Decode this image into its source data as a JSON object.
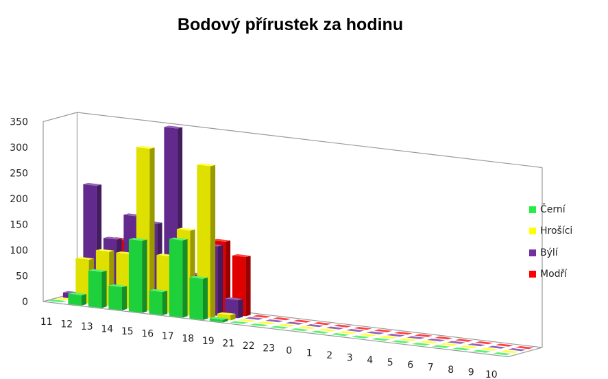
{
  "chart_data": {
    "type": "bar",
    "subtype": "3d-column",
    "title": "Bodový přírustek za hodinu",
    "xlabel": "",
    "ylabel": "",
    "ylim": [
      0,
      350
    ],
    "yticks": [
      0,
      50,
      100,
      150,
      200,
      250,
      300,
      350
    ],
    "grid": false,
    "legend_position": "right",
    "categories": [
      "11",
      "12",
      "13",
      "14",
      "15",
      "16",
      "17",
      "18",
      "19",
      "21",
      "22",
      "23",
      "0",
      "1",
      "2",
      "3",
      "4",
      "5",
      "6",
      "7",
      "8",
      "9",
      "10"
    ],
    "series": [
      {
        "name": "Černí",
        "color": "#22ee44",
        "values": [
          0,
          20,
          70,
          45,
          140,
          45,
          150,
          80,
          5,
          0,
          0,
          0,
          0,
          0,
          0,
          0,
          0,
          0,
          0,
          0,
          0,
          0,
          0
        ]
      },
      {
        "name": "Hrošíci",
        "color": "#ffff00",
        "values": [
          0,
          85,
          105,
          105,
          315,
          110,
          165,
          295,
          10,
          0,
          0,
          0,
          0,
          0,
          0,
          0,
          0,
          0,
          0,
          0,
          0,
          0,
          0
        ]
      },
      {
        "name": "Býlí",
        "color": "#7030a0",
        "values": [
          10,
          225,
          125,
          175,
          165,
          355,
          75,
          135,
          35,
          0,
          0,
          0,
          0,
          0,
          0,
          0,
          0,
          0,
          0,
          0,
          0,
          0,
          0
        ]
      },
      {
        "name": "Modří",
        "color": "#ff0000",
        "values": [
          0,
          0,
          120,
          0,
          0,
          80,
          0,
          140,
          115,
          0,
          0,
          0,
          0,
          0,
          0,
          0,
          0,
          0,
          0,
          0,
          0,
          0,
          0
        ]
      }
    ]
  }
}
